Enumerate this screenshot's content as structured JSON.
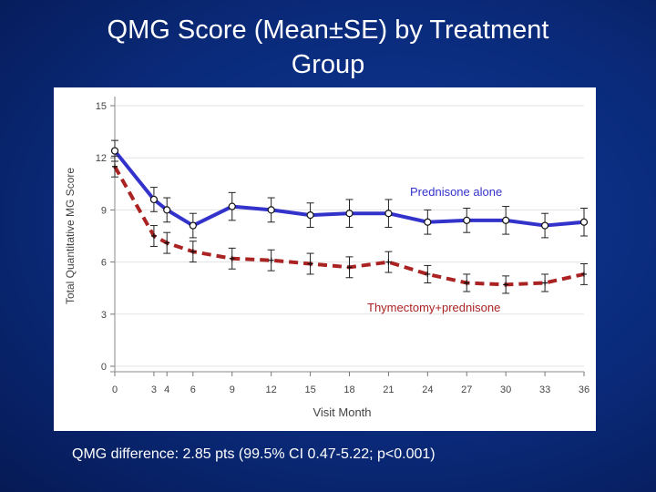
{
  "slide": {
    "title_line1": "QMG Score (Mean±SE) by Treatment",
    "title_line2": "Group",
    "footnote": "QMG difference: 2.85 pts (99.5% CI 0.47-5.22; p<0.001)"
  },
  "chart_data": {
    "type": "line",
    "title": "QMG Score (Mean±SE) by Treatment Group",
    "xlabel": "Visit Month",
    "ylabel": "Total Quantitative MG Score",
    "ylim": [
      0,
      15
    ],
    "xlim": [
      0,
      36
    ],
    "x_ticks": [
      0,
      3,
      4,
      6,
      9,
      12,
      15,
      18,
      21,
      24,
      27,
      30,
      33,
      36
    ],
    "y_ticks": [
      0,
      3,
      6,
      9,
      12,
      15
    ],
    "grid": "horizontal",
    "series": [
      {
        "name": "Prednisone alone",
        "color": "#3333cc",
        "line_style": "solid",
        "marker": "circle",
        "x": [
          0,
          3,
          4,
          6,
          9,
          12,
          15,
          18,
          21,
          24,
          27,
          30,
          33,
          36
        ],
        "y": [
          12.4,
          9.6,
          9.0,
          8.1,
          9.2,
          9.0,
          8.7,
          8.8,
          8.8,
          8.3,
          8.4,
          8.4,
          8.1,
          8.3
        ],
        "se": [
          0.6,
          0.7,
          0.7,
          0.7,
          0.8,
          0.7,
          0.7,
          0.8,
          0.8,
          0.7,
          0.7,
          0.8,
          0.7,
          0.8
        ]
      },
      {
        "name": "Thymectomy+prednisone",
        "color": "#aa2222",
        "line_style": "dashed",
        "marker": "plus",
        "x": [
          0,
          3,
          4,
          6,
          9,
          12,
          15,
          18,
          21,
          24,
          27,
          30,
          33,
          36
        ],
        "y": [
          11.5,
          7.5,
          7.1,
          6.6,
          6.2,
          6.1,
          5.9,
          5.7,
          6.0,
          5.3,
          4.8,
          4.7,
          4.8,
          5.3
        ],
        "se": [
          0.6,
          0.6,
          0.6,
          0.6,
          0.6,
          0.6,
          0.6,
          0.6,
          0.6,
          0.5,
          0.5,
          0.5,
          0.5,
          0.6
        ]
      }
    ]
  }
}
